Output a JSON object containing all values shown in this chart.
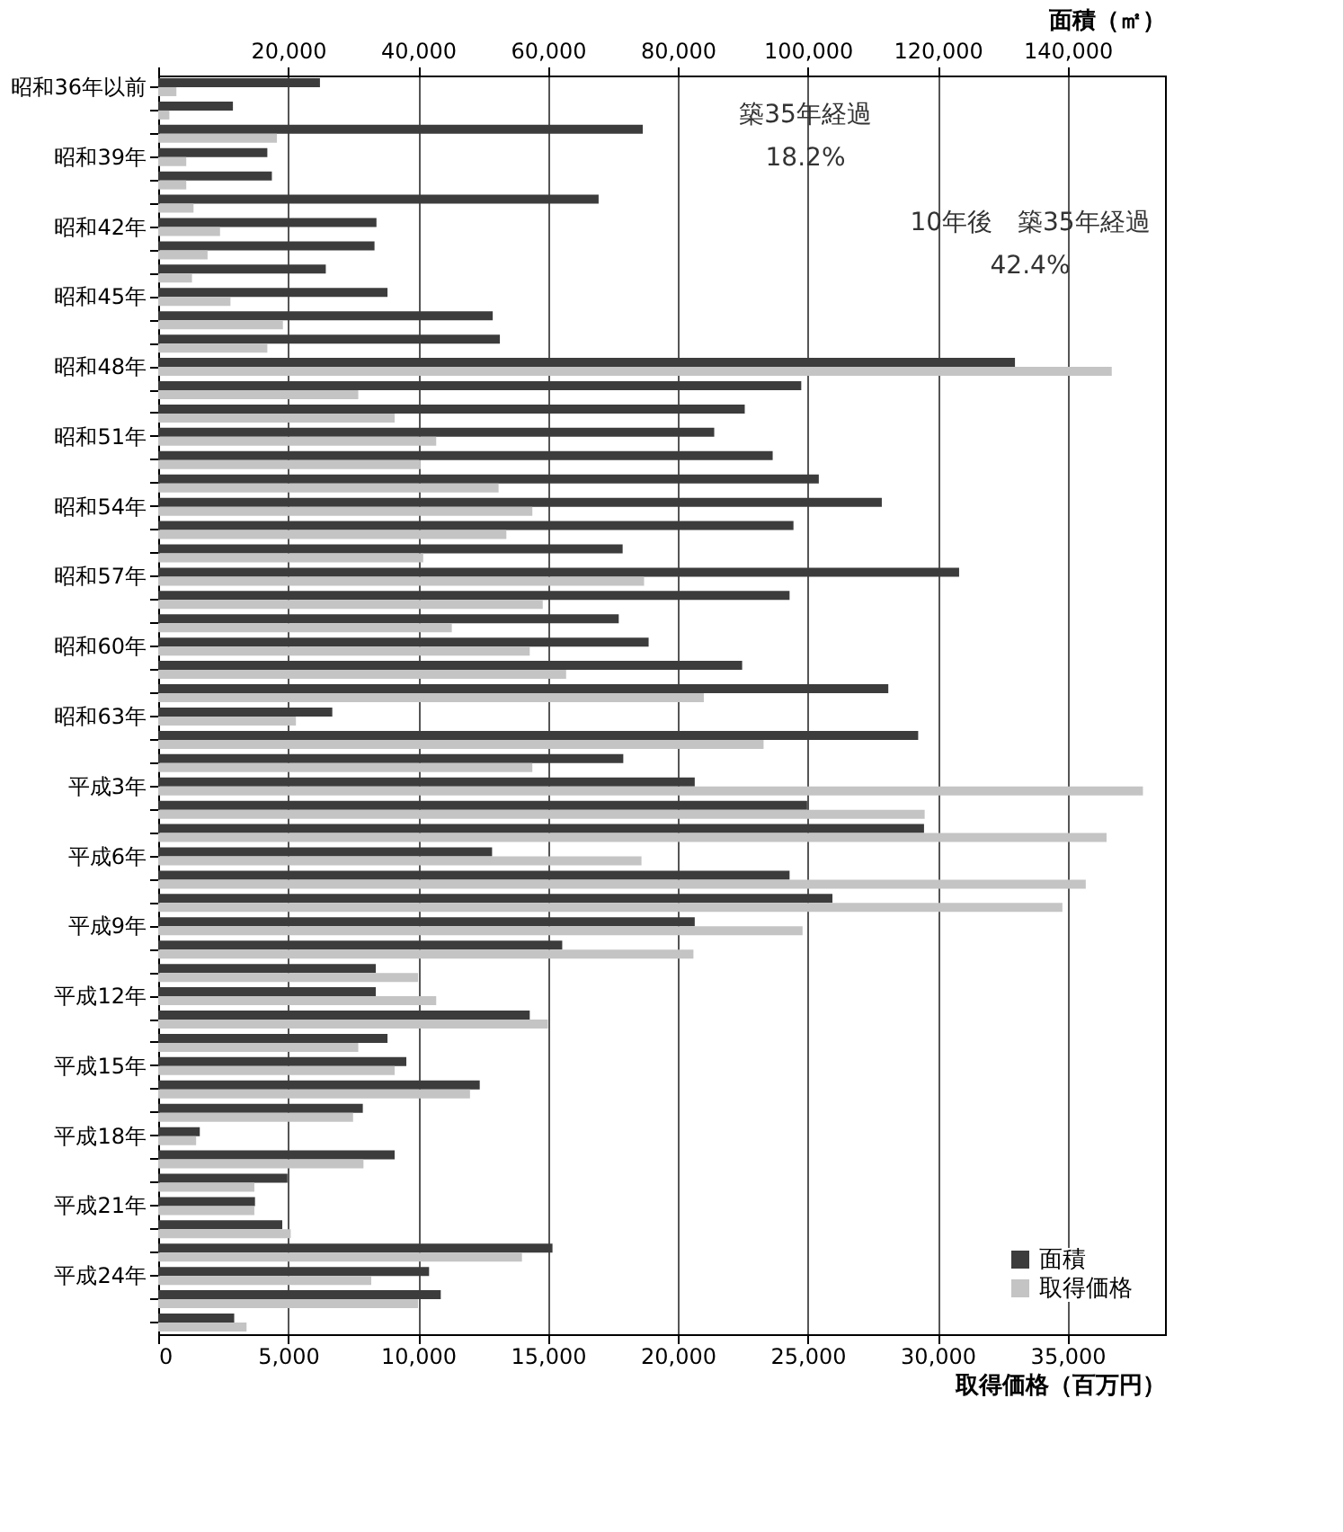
{
  "chart_data": {
    "type": "bar",
    "orientation": "horizontal",
    "xlabel": "取得価格（百万円）",
    "x2label": "面積（㎡）",
    "categories": [
      "昭和36年以前",
      null,
      null,
      "昭和39年",
      null,
      null,
      "昭和42年",
      null,
      null,
      "昭和45年",
      null,
      null,
      "昭和48年",
      null,
      null,
      "昭和51年",
      null,
      null,
      "昭和54年",
      null,
      null,
      "昭和57年",
      null,
      null,
      "昭和60年",
      null,
      null,
      "昭和63年",
      null,
      null,
      "平成3年",
      null,
      null,
      "平成6年",
      null,
      null,
      "平成9年",
      null,
      null,
      "平成12年",
      null,
      null,
      "平成15年",
      null,
      null,
      "平成18年",
      null,
      null,
      "平成21年",
      null,
      null,
      "平成24年",
      null,
      null
    ],
    "series": [
      {
        "name": "面積",
        "color": "#3c3c3c",
        "axis": "x2",
        "values": [
          24900,
          11500,
          74600,
          16800,
          17500,
          67800,
          33600,
          33300,
          25800,
          35300,
          51500,
          52600,
          131900,
          99000,
          90300,
          85600,
          94600,
          101700,
          111400,
          97800,
          71500,
          123300,
          97200,
          70900,
          75500,
          89900,
          112400,
          26800,
          117000,
          71600,
          82600,
          99900,
          117900,
          51400,
          97200,
          103800,
          82600,
          62200,
          33500,
          33500,
          57200,
          35300,
          38200,
          49500,
          31500,
          6400,
          36400,
          19900,
          14900,
          19100,
          60700,
          41700,
          43500,
          11700
        ]
      },
      {
        "name": "取得価格",
        "color": "#c4c4c4",
        "values": [
          700,
          430,
          4570,
          1080,
          1080,
          1360,
          2380,
          1900,
          1300,
          2780,
          4800,
          4200,
          36700,
          7700,
          9100,
          10700,
          10100,
          13100,
          14400,
          13400,
          10200,
          18700,
          14800,
          11300,
          14300,
          15700,
          21000,
          5300,
          23300,
          14400,
          37900,
          29500,
          36500,
          18600,
          35700,
          34800,
          24800,
          20600,
          10000,
          10700,
          15000,
          7700,
          9100,
          12000,
          7500,
          1460,
          7900,
          3700,
          3700,
          5100,
          14000,
          8200,
          10000,
          3400
        ]
      }
    ],
    "xlim": [
      0,
      38750
    ],
    "xticks": [
      0,
      {
        "value": 5000,
        "label": "5,000"
      },
      {
        "value": 10000,
        "label": "10,000"
      },
      {
        "value": 15000,
        "label": "15,000"
      },
      {
        "value": 20000,
        "label": "20,000"
      },
      {
        "value": 25000,
        "label": "25,000"
      },
      {
        "value": 30000,
        "label": "30,000"
      },
      {
        "value": 35000,
        "label": "35,000"
      }
    ],
    "x2lim": [
      0,
      155000
    ],
    "x2ticks": [
      {
        "value": 0,
        "label": null
      },
      {
        "value": 20000,
        "label": "20,000"
      },
      {
        "value": 40000,
        "label": "40,000"
      },
      {
        "value": 60000,
        "label": "60,000"
      },
      {
        "value": 80000,
        "label": "80,000"
      },
      {
        "value": 100000,
        "label": "100,000"
      },
      {
        "value": 120000,
        "label": "120,000"
      },
      {
        "value": 140000,
        "label": "140,000"
      }
    ],
    "grid": "x",
    "legend": "bottom right",
    "annotations": [
      "築35年経過",
      "18.2%",
      "10年後　築35年経過",
      "42.4%"
    ]
  }
}
